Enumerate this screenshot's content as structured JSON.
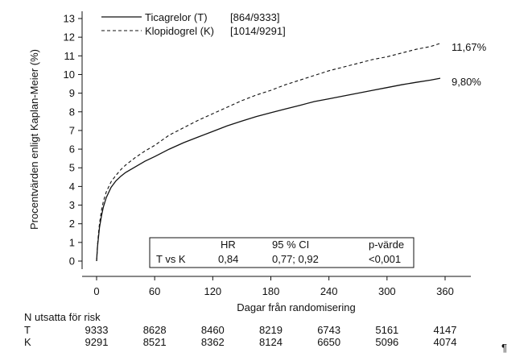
{
  "chart_data": {
    "type": "line",
    "xlabel": "Dagar från randomisering",
    "ylabel": "Procentvärden enligt Kaplan-Meier (%)",
    "xlim": [
      0,
      360
    ],
    "ylim": [
      0,
      13
    ],
    "xticks": [
      0,
      60,
      120,
      180,
      240,
      300,
      360
    ],
    "yticks": [
      0,
      1,
      2,
      3,
      4,
      5,
      6,
      7,
      8,
      9,
      10,
      11,
      12,
      13
    ],
    "grid": false,
    "legend_position": "top-left",
    "series": [
      {
        "name": "Ticagrelor (T)",
        "count": "[864/9333]",
        "style": "solid",
        "end_label": "9,80%",
        "x": [
          0,
          1,
          2,
          3,
          5,
          7,
          10,
          15,
          20,
          25,
          30,
          40,
          50,
          60,
          75,
          90,
          105,
          120,
          135,
          150,
          165,
          180,
          195,
          210,
          225,
          240,
          255,
          270,
          285,
          300,
          315,
          330,
          345,
          355
        ],
        "y": [
          0,
          0.8,
          1.3,
          1.8,
          2.4,
          2.9,
          3.4,
          3.95,
          4.3,
          4.55,
          4.75,
          5.05,
          5.35,
          5.6,
          6.0,
          6.35,
          6.65,
          6.95,
          7.25,
          7.5,
          7.75,
          7.95,
          8.15,
          8.35,
          8.55,
          8.7,
          8.85,
          9.0,
          9.15,
          9.3,
          9.45,
          9.58,
          9.7,
          9.8
        ]
      },
      {
        "name": "Klopidogrel (K)",
        "count": "[1014/9291]",
        "style": "dashed",
        "end_label": "11,67%",
        "x": [
          0,
          1,
          2,
          3,
          5,
          7,
          10,
          15,
          20,
          25,
          30,
          40,
          50,
          60,
          75,
          90,
          105,
          120,
          135,
          150,
          165,
          180,
          195,
          210,
          225,
          240,
          255,
          270,
          285,
          300,
          315,
          330,
          345,
          355
        ],
        "y": [
          0,
          0.9,
          1.5,
          2.0,
          2.7,
          3.2,
          3.7,
          4.25,
          4.6,
          4.9,
          5.15,
          5.55,
          5.9,
          6.2,
          6.75,
          7.15,
          7.55,
          7.9,
          8.25,
          8.6,
          8.9,
          9.15,
          9.45,
          9.7,
          9.95,
          10.2,
          10.4,
          10.6,
          10.8,
          10.95,
          11.15,
          11.35,
          11.5,
          11.67
        ]
      }
    ],
    "stats_box": {
      "headers": [
        "",
        "HR",
        "95 % CI",
        "p-värde"
      ],
      "row": [
        "T vs K",
        "0,84",
        "0,77; 0,92",
        "<0,001"
      ]
    },
    "risk_table": {
      "title": "N utsatta för risk",
      "days": [
        0,
        60,
        120,
        180,
        240,
        300,
        360
      ],
      "rows": [
        {
          "label": "T",
          "values": [
            "9333",
            "8628",
            "8460",
            "8219",
            "6743",
            "5161",
            "4147"
          ]
        },
        {
          "label": "K",
          "values": [
            "9291",
            "8521",
            "8362",
            "8124",
            "6650",
            "5096",
            "4074"
          ]
        }
      ]
    }
  },
  "pilcrow": "¶"
}
